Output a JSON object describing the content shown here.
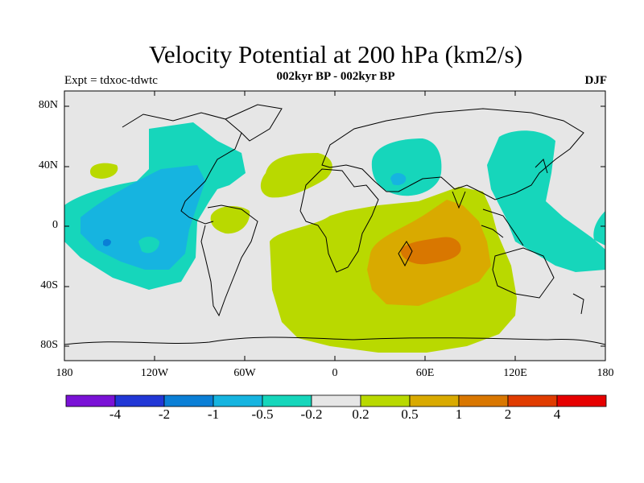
{
  "title": "Velocity Potential at 200 hPa (km2/s)",
  "subtitle": "002kyr BP - 002kyr BP",
  "experiment": "Expt = tdxoc-tdwtc",
  "season": "DJF",
  "lat_labels": [
    "80N",
    "40N",
    "0",
    "40S",
    "80S"
  ],
  "lon_labels": [
    "180",
    "120W",
    "60W",
    "0",
    "60E",
    "120E",
    "180"
  ],
  "colorbar": {
    "labels": [
      "-4",
      "-2",
      "-1",
      "-0.5",
      "-0.2",
      "0.2",
      "0.5",
      "1",
      "2",
      "4"
    ],
    "colors": [
      "#7a12d6",
      "#2137d6",
      "#0a7fd6",
      "#16b4e0",
      "#16d6bb",
      "#e6e6e6",
      "#b9d900",
      "#d9aa00",
      "#d97700",
      "#e03c00",
      "#e60000"
    ]
  }
}
